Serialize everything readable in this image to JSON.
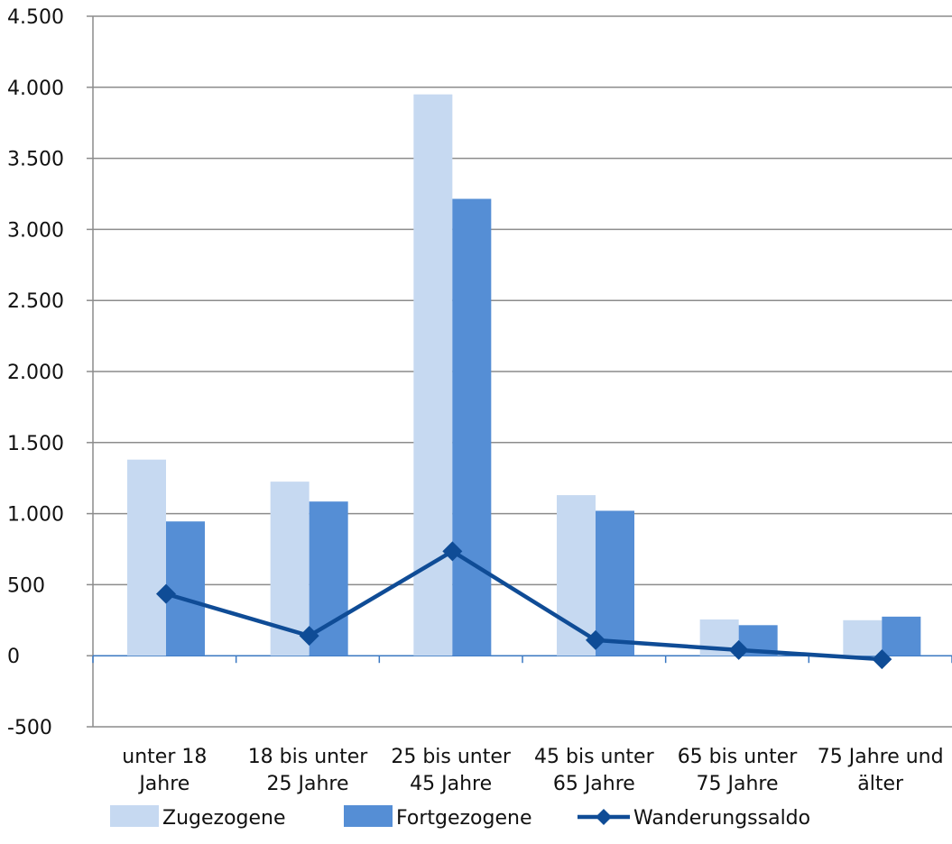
{
  "chart_data": {
    "type": "bar",
    "categories": [
      [
        "unter 18",
        "Jahre"
      ],
      [
        "18 bis unter",
        "25 Jahre"
      ],
      [
        "25 bis unter",
        "45 Jahre"
      ],
      [
        "45 bis unter",
        "65 Jahre"
      ],
      [
        "65 bis unter",
        "75 Jahre"
      ],
      [
        "75 Jahre und",
        "älter"
      ]
    ],
    "series": [
      {
        "name": "Zugezogene",
        "kind": "bar",
        "color": "#c6d9f1",
        "values": [
          1380,
          1225,
          3950,
          1130,
          255,
          250
        ]
      },
      {
        "name": "Fortgezogene",
        "kind": "bar",
        "color": "#558ed5",
        "values": [
          945,
          1085,
          3215,
          1020,
          215,
          275
        ]
      },
      {
        "name": "Wanderungssaldo",
        "kind": "line",
        "color": "#0f4c96",
        "values": [
          435,
          140,
          735,
          110,
          40,
          -25
        ]
      }
    ],
    "ylim": [
      -500,
      4500
    ],
    "yticks": [
      -500,
      0,
      500,
      1000,
      1500,
      2000,
      2500,
      3000,
      3500,
      4000,
      4500
    ],
    "ytick_labels": [
      "-500",
      "0",
      "500",
      "1.000",
      "1.500",
      "2.000",
      "2.500",
      "3.000",
      "3.500",
      "4.000",
      "4.500"
    ],
    "grid": true,
    "legend_position": "bottom"
  }
}
